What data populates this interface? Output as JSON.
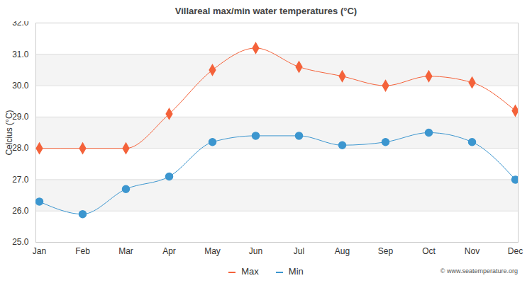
{
  "chart_data": {
    "type": "line",
    "title": "Villareal max/min water temperatures (°C)",
    "y_label": "Celcius (°C)",
    "annotations": [
      "© www.seatemperature.org"
    ],
    "categories": [
      "Jan",
      "Feb",
      "Mar",
      "Apr",
      "May",
      "Jun",
      "Jul",
      "Aug",
      "Sep",
      "Oct",
      "Nov",
      "Dec"
    ],
    "series": [
      {
        "name": "Max",
        "color": "#f4623a",
        "marker": "diamond",
        "values": [
          28.0,
          28.0,
          28.0,
          29.1,
          30.5,
          31.2,
          30.6,
          30.3,
          30.0,
          30.3,
          30.1,
          29.2
        ]
      },
      {
        "name": "Min",
        "color": "#3c96cf",
        "marker": "circle",
        "values": [
          26.3,
          25.9,
          26.7,
          27.1,
          28.2,
          28.4,
          28.4,
          28.1,
          28.2,
          28.5,
          28.2,
          27.0
        ]
      }
    ],
    "ylim": [
      25,
      32
    ],
    "yticks": [
      25,
      26,
      27,
      28,
      29,
      30,
      31,
      32
    ],
    "grid": true,
    "legend": "bottom"
  }
}
